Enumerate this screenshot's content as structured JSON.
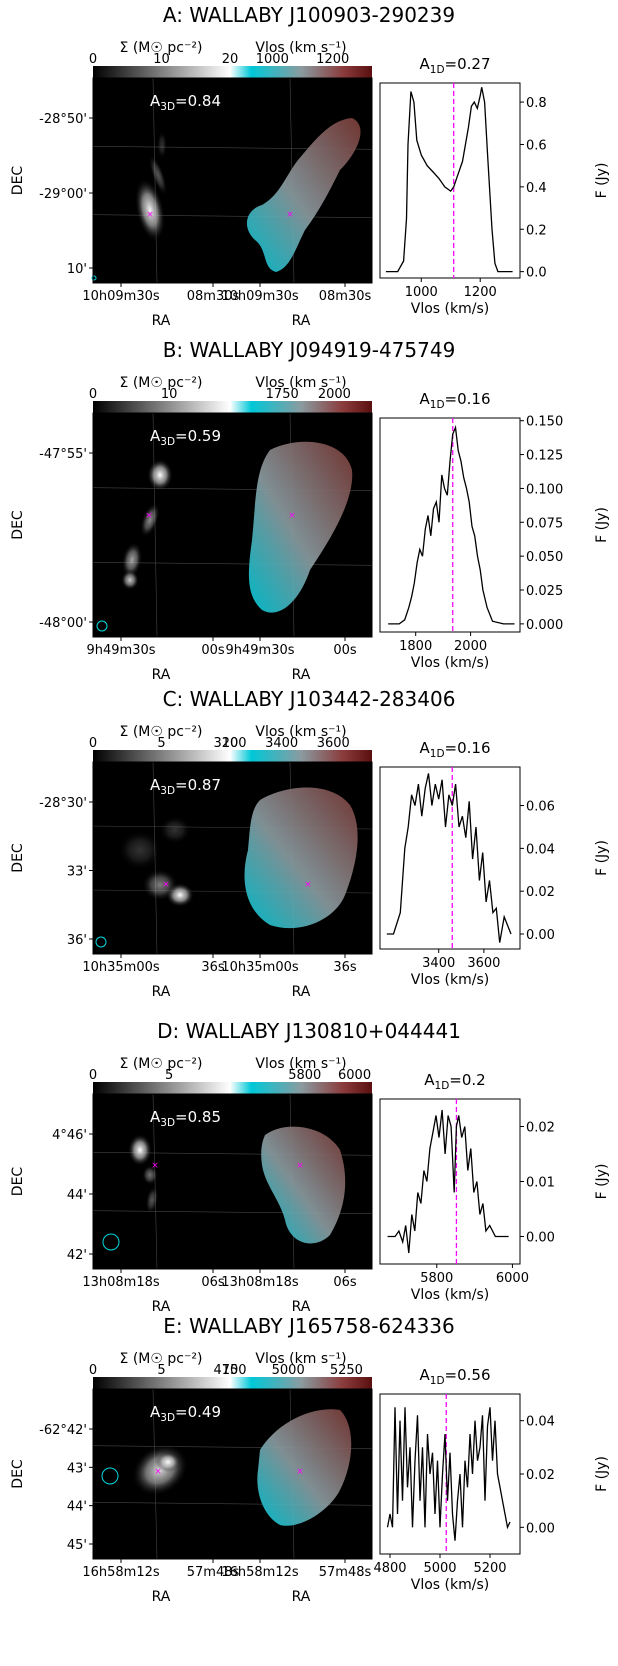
{
  "colors": {
    "surface_gray_low": "#000000",
    "surface_gray_high": "#ffffff",
    "velocity_low": "#00c8d8",
    "velocity_mid": "#8a9ba0",
    "velocity_high": "#5a1010",
    "spectrum_line": "#000000",
    "systemic_marker": "#ff00ff",
    "center_marker": "#ff00ff",
    "beam": "#00d8e0",
    "image_background": "#000000"
  },
  "chart_data": [
    {
      "type": "line",
      "title": "A: WALLABY J100903-290239",
      "moment0": {
        "colorbar_label": "Σ (M☉ pc⁻²)",
        "colorbar_ticks": [
          "0",
          "10",
          "20"
        ],
        "colorbar_range": [
          0,
          20
        ],
        "asymmetry_label": "A3D=0.84",
        "A3D": 0.84
      },
      "moment1": {
        "colorbar_label": "Vlos (km s⁻¹)",
        "colorbar_ticks": [
          "1000",
          "1200"
        ],
        "colorbar_range": [
          860,
          1330
        ]
      },
      "ylabel": "DEC",
      "xlabel": "RA",
      "dec_ticks": [
        "-28°50'",
        "-29°00'",
        "10'"
      ],
      "ra_ticks_left": [
        "10h09m30s",
        "08m30s"
      ],
      "ra_ticks_right": [
        "10h09m30s",
        "08m30s"
      ],
      "spectrum": {
        "title": "A1D=0.27",
        "A1D": 0.27,
        "xlabel": "Vlos (km/s)",
        "ylabel": "F (Jy)",
        "xlim": [
          860,
          1335
        ],
        "ylim": [
          -0.03,
          0.89
        ],
        "x_ticks": [
          1000,
          1200
        ],
        "y_ticks": [
          0.0,
          0.2,
          0.4,
          0.6,
          0.8
        ],
        "y_tick_labels": [
          "0.0",
          "0.2",
          "0.4",
          "0.6",
          "0.8"
        ],
        "systemic_velocity": 1110,
        "x": [
          880,
          920,
          940,
          950,
          955,
          965,
          975,
          985,
          1000,
          1020,
          1040,
          1060,
          1080,
          1100,
          1110,
          1120,
          1140,
          1160,
          1170,
          1180,
          1190,
          1200,
          1205,
          1215,
          1225,
          1240,
          1250,
          1260,
          1270,
          1290,
          1310
        ],
        "y": [
          0.0,
          0.0,
          0.05,
          0.25,
          0.6,
          0.85,
          0.8,
          0.62,
          0.55,
          0.5,
          0.47,
          0.44,
          0.4,
          0.38,
          0.4,
          0.44,
          0.52,
          0.68,
          0.78,
          0.8,
          0.77,
          0.83,
          0.87,
          0.8,
          0.55,
          0.2,
          0.04,
          0.0,
          0.0,
          0.0,
          0.0
        ]
      }
    },
    {
      "type": "line",
      "title": "B: WALLABY J094919-475749",
      "moment0": {
        "colorbar_label": "Σ (M☉ pc⁻²)",
        "colorbar_ticks": [
          "0",
          "10"
        ],
        "colorbar_range": [
          0,
          18
        ],
        "asymmetry_label": "A3D=0.59",
        "A3D": 0.59
      },
      "moment1": {
        "colorbar_label": "Vlos (km s⁻¹)",
        "colorbar_ticks": [
          "1750",
          "2000"
        ],
        "colorbar_range": [
          1500,
          2180
        ]
      },
      "ylabel": "DEC",
      "xlabel": "RA",
      "dec_ticks": [
        "-47°55'",
        "-48°00'"
      ],
      "ra_ticks_left": [
        "9h49m30s",
        "00s"
      ],
      "ra_ticks_right": [
        "9h49m30s",
        "00s"
      ],
      "spectrum": {
        "title": "A1D=0.16",
        "A1D": 0.16,
        "xlabel": "Vlos (km/s)",
        "ylabel": "F (Jy)",
        "xlim": [
          1670,
          2180
        ],
        "ylim": [
          -0.006,
          0.152
        ],
        "x_ticks": [
          1800,
          2000
        ],
        "y_ticks": [
          0.0,
          0.025,
          0.05,
          0.075,
          0.1,
          0.125,
          0.15
        ],
        "y_tick_labels": [
          "0.000",
          "0.025",
          "0.050",
          "0.075",
          "0.100",
          "0.125",
          "0.150"
        ],
        "systemic_velocity": 1935,
        "x": [
          1700,
          1740,
          1760,
          1775,
          1785,
          1795,
          1805,
          1815,
          1825,
          1835,
          1845,
          1855,
          1865,
          1875,
          1885,
          1895,
          1905,
          1915,
          1925,
          1935,
          1945,
          1955,
          1965,
          1975,
          1985,
          1995,
          2005,
          2015,
          2025,
          2035,
          2045,
          2060,
          2080,
          2120,
          2160
        ],
        "y": [
          0.0,
          0.0,
          0.003,
          0.012,
          0.02,
          0.03,
          0.045,
          0.055,
          0.05,
          0.07,
          0.08,
          0.065,
          0.085,
          0.09,
          0.075,
          0.11,
          0.1,
          0.095,
          0.12,
          0.14,
          0.145,
          0.128,
          0.12,
          0.108,
          0.1,
          0.09,
          0.072,
          0.065,
          0.05,
          0.04,
          0.025,
          0.012,
          0.002,
          0.0,
          0.0
        ]
      }
    },
    {
      "type": "line",
      "title": "C: WALLABY J103442-283406",
      "moment0": {
        "colorbar_label": "Σ (M☉ pc⁻²)",
        "colorbar_ticks": [
          "0",
          "5",
          "10"
        ],
        "colorbar_range": [
          0,
          10
        ],
        "asymmetry_label": "A3D=0.87",
        "A3D": 0.87
      },
      "moment1": {
        "colorbar_label": "Vlos (km s⁻¹)",
        "colorbar_ticks": [
          "3200",
          "3400",
          "3600"
        ],
        "colorbar_range": [
          3200,
          3750
        ]
      },
      "ylabel": "DEC",
      "xlabel": "RA",
      "dec_ticks": [
        "-28°30'",
        "33'",
        "36'"
      ],
      "ra_ticks_left": [
        "10h35m00s",
        "36s"
      ],
      "ra_ticks_right": [
        "10h35m00s",
        "36s"
      ],
      "spectrum": {
        "title": "A1D=0.16",
        "A1D": 0.16,
        "xlabel": "Vlos (km/s)",
        "ylabel": "F (Jy)",
        "xlim": [
          3140,
          3760
        ],
        "ylim": [
          -0.007,
          0.078
        ],
        "x_ticks": [
          3400,
          3600
        ],
        "y_ticks": [
          0.0,
          0.02,
          0.04,
          0.06
        ],
        "y_tick_labels": [
          "0.00",
          "0.02",
          "0.04",
          "0.06"
        ],
        "systemic_velocity": 3460,
        "x": [
          3170,
          3200,
          3230,
          3250,
          3265,
          3280,
          3295,
          3310,
          3325,
          3340,
          3355,
          3370,
          3385,
          3400,
          3415,
          3430,
          3445,
          3460,
          3475,
          3490,
          3505,
          3520,
          3535,
          3550,
          3565,
          3580,
          3595,
          3610,
          3625,
          3640,
          3655,
          3670,
          3690,
          3720
        ],
        "y": [
          0.0,
          0.0,
          0.01,
          0.04,
          0.05,
          0.065,
          0.06,
          0.07,
          0.055,
          0.068,
          0.075,
          0.06,
          0.07,
          0.063,
          0.072,
          0.05,
          0.065,
          0.06,
          0.07,
          0.05,
          0.055,
          0.045,
          0.062,
          0.035,
          0.05,
          0.025,
          0.038,
          0.015,
          0.025,
          0.01,
          0.012,
          -0.004,
          0.008,
          0.0
        ]
      }
    },
    {
      "type": "line",
      "title": "D: WALLABY J130810+044441",
      "moment0": {
        "colorbar_label": "Σ (M☉ pc⁻²)",
        "colorbar_ticks": [
          "0",
          "5"
        ],
        "colorbar_range": [
          0,
          9
        ],
        "asymmetry_label": "A3D=0.85",
        "A3D": 0.85
      },
      "moment1": {
        "colorbar_label": "Vlos (km s⁻¹)",
        "colorbar_ticks": [
          "5800",
          "6000"
        ],
        "colorbar_range": [
          5500,
          6070
        ]
      },
      "ylabel": "DEC",
      "xlabel": "RA",
      "dec_ticks": [
        "4°46'",
        "44'",
        "42'"
      ],
      "ra_ticks_left": [
        "13h08m18s",
        "06s"
      ],
      "ra_ticks_right": [
        "13h08m18s",
        "06s"
      ],
      "spectrum": {
        "title": "A1D=0.2",
        "A1D": 0.2,
        "xlabel": "Vlos (km/s)",
        "ylabel": "F (Jy)",
        "xlim": [
          5650,
          6020
        ],
        "ylim": [
          -0.005,
          0.025
        ],
        "x_ticks": [
          5800,
          6000
        ],
        "y_ticks": [
          0.0,
          0.01,
          0.02
        ],
        "y_tick_labels": [
          "0.00",
          "0.01",
          "0.02"
        ],
        "systemic_velocity": 5852,
        "x": [
          5670,
          5690,
          5700,
          5710,
          5718,
          5726,
          5734,
          5742,
          5750,
          5758,
          5766,
          5774,
          5782,
          5790,
          5798,
          5806,
          5814,
          5822,
          5830,
          5838,
          5846,
          5852,
          5858,
          5866,
          5874,
          5882,
          5890,
          5898,
          5906,
          5914,
          5922,
          5930,
          5940,
          5955,
          5970,
          5990
        ],
        "y": [
          0.0,
          0.0,
          0.001,
          -0.001,
          0.002,
          -0.003,
          0.004,
          0.001,
          0.008,
          0.006,
          0.012,
          0.01,
          0.016,
          0.019,
          0.022,
          0.018,
          0.023,
          0.015,
          0.022,
          0.02,
          0.008,
          0.02,
          0.022,
          0.018,
          0.02,
          0.012,
          0.016,
          0.008,
          0.01,
          0.004,
          0.006,
          0.001,
          0.002,
          0.0,
          0.0,
          0.0
        ]
      }
    },
    {
      "type": "line",
      "title": "E: WALLABY J165758-624336",
      "moment0": {
        "colorbar_label": "Σ (M☉ pc⁻²)",
        "colorbar_ticks": [
          "0",
          "5",
          "10"
        ],
        "colorbar_range": [
          0,
          10
        ],
        "asymmetry_label": "A3D=0.49",
        "A3D": 0.49
      },
      "moment1": {
        "colorbar_label": "Vlos (km s⁻¹)",
        "colorbar_ticks": [
          "4750",
          "5000",
          "5250"
        ],
        "colorbar_range": [
          4750,
          5360
        ]
      },
      "ylabel": "DEC",
      "xlabel": "RA",
      "dec_ticks": [
        "-62°42'",
        "43'",
        "44'",
        "45'"
      ],
      "ra_ticks_left": [
        "16h58m12s",
        "57m48s"
      ],
      "ra_ticks_right": [
        "16h58m12s",
        "57m48s"
      ],
      "spectrum": {
        "title": "A1D=0.56",
        "A1D": 0.56,
        "xlabel": "Vlos (km/s)",
        "ylabel": "F (Jy)",
        "xlim": [
          4760,
          5320
        ],
        "ylim": [
          -0.01,
          0.05
        ],
        "x_ticks": [
          4800,
          5000,
          5200
        ],
        "y_ticks": [
          0.0,
          0.02,
          0.04
        ],
        "y_tick_labels": [
          "0.00",
          "0.02",
          "0.04"
        ],
        "systemic_velocity": 5025,
        "x": [
          4790,
          4800,
          4810,
          4820,
          4830,
          4840,
          4850,
          4860,
          4870,
          4880,
          4890,
          4900,
          4910,
          4920,
          4930,
          4940,
          4950,
          4960,
          4970,
          4980,
          4990,
          5000,
          5010,
          5020,
          5030,
          5040,
          5050,
          5060,
          5070,
          5080,
          5090,
          5100,
          5110,
          5120,
          5130,
          5140,
          5150,
          5160,
          5170,
          5180,
          5190,
          5200,
          5210,
          5220,
          5230,
          5240,
          5250,
          5260,
          5270,
          5280
        ],
        "y": [
          0.0,
          0.005,
          0.0,
          0.045,
          0.005,
          0.04,
          0.01,
          0.045,
          0.015,
          0.03,
          0.0,
          0.025,
          0.042,
          0.01,
          0.03,
          0.0,
          0.035,
          0.02,
          0.028,
          0.005,
          0.025,
          0.0,
          0.02,
          0.035,
          0.01,
          0.028,
          0.005,
          -0.005,
          0.01,
          0.02,
          0.0,
          0.025,
          0.015,
          0.035,
          0.02,
          0.04,
          0.025,
          0.03,
          0.042,
          0.01,
          0.038,
          0.045,
          0.025,
          0.04,
          0.02,
          0.015,
          0.01,
          0.005,
          0.0,
          0.002
        ]
      }
    }
  ]
}
